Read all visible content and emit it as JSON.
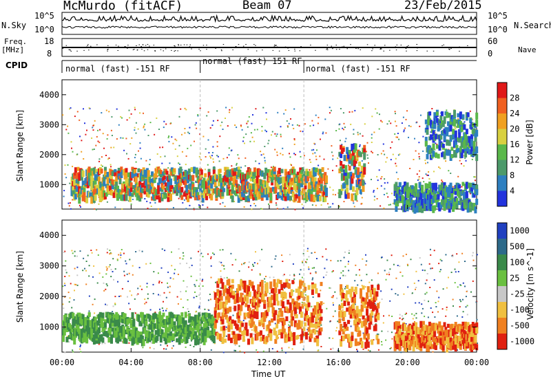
{
  "header": {
    "station": "McMurdo (fitACF)",
    "beam": "Beam 07",
    "date": "23/Feb/2015"
  },
  "top_panels": {
    "nsky_label": "N.Sky",
    "nsky_ticks": [
      "10^5",
      "10^0"
    ],
    "nsearch_label": "N.Search",
    "nsearch_ticks": [
      "10^5",
      "10^0"
    ],
    "freq_label_1": "Freq.",
    "freq_label_2": "[MHz]",
    "freq_ticks": [
      "18",
      "8"
    ],
    "nave_label": "Nave",
    "nave_ticks": [
      "60",
      "0"
    ],
    "cpid_label": "CPID",
    "cpid_segments": [
      {
        "label": "normal (fast) -151 RF",
        "start_hour": 0
      },
      {
        "label": "normal (fast) 151 RF",
        "start_hour": 8
      },
      {
        "label": "normal (fast) -151 RF",
        "start_hour": 14
      }
    ]
  },
  "chart_data": [
    {
      "type": "heatmap",
      "panel": "power",
      "ylabel": "Slant Range [km]",
      "ylim": [
        180,
        4500
      ],
      "yticks": [
        "1000",
        "2000",
        "3000",
        "4000"
      ],
      "xlim_hours": [
        0,
        24
      ],
      "colorbar_label": "Power [dB]",
      "colorbar_ticks": [
        "4",
        "8",
        "12",
        "16",
        "20",
        "24",
        "28"
      ],
      "colors": [
        "#2233dd",
        "#2d7fc0",
        "#4c9a6a",
        "#5ab84a",
        "#d8d040",
        "#f0a020",
        "#f06020",
        "#e01818"
      ],
      "bands": [
        {
          "start_hour": 0.5,
          "end_hour": 15.3,
          "range_km": [
            600,
            1600
          ],
          "level": "high"
        },
        {
          "start_hour": 16.0,
          "end_hour": 17.5,
          "range_km": [
            700,
            2400
          ],
          "level": "mid"
        },
        {
          "start_hour": 19.2,
          "end_hour": 24.0,
          "range_km": [
            250,
            1100
          ],
          "level": "low"
        },
        {
          "start_hour": 21.0,
          "end_hour": 24.0,
          "range_km": [
            2000,
            3500
          ],
          "level": "low"
        }
      ]
    },
    {
      "type": "heatmap",
      "panel": "velocity",
      "ylabel": "Slant Range [km]",
      "ylim": [
        180,
        4500
      ],
      "yticks": [
        "1000",
        "2000",
        "3000",
        "4000"
      ],
      "xlim_hours": [
        0,
        24
      ],
      "xlabel": "Time UT",
      "xticks": [
        "00:00",
        "04:00",
        "08:00",
        "12:00",
        "16:00",
        "20:00",
        "00:00"
      ],
      "colorbar_label": "Velocity [m s^-1]",
      "colorbar_ticks": [
        "1000",
        "500",
        "100",
        "25",
        "-25",
        "-100",
        "-500",
        "-1000"
      ],
      "colors": [
        "#2040c0",
        "#2d6a8a",
        "#3a8a4a",
        "#6ac040",
        "#c8c8c8",
        "#f0c040",
        "#f08020",
        "#e02010"
      ],
      "bands": [
        {
          "start_hour": 0.0,
          "end_hour": 8.8,
          "range_km": [
            600,
            1500
          ],
          "level": "positive"
        },
        {
          "start_hour": 8.8,
          "end_hour": 15.0,
          "range_km": [
            600,
            2600
          ],
          "level": "negative"
        },
        {
          "start_hour": 16.0,
          "end_hour": 18.3,
          "range_km": [
            500,
            2400
          ],
          "level": "negative"
        },
        {
          "start_hour": 19.2,
          "end_hour": 24.0,
          "range_km": [
            400,
            1200
          ],
          "level": "negative"
        }
      ]
    }
  ]
}
